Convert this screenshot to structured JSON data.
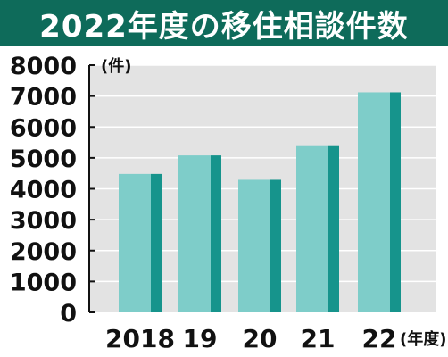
{
  "title": "2022年度の移住相談件数",
  "colors": {
    "title_bg": "#0e6b5a",
    "plot_bg": "#e3e3e3",
    "bar_face": "#7ecdc9",
    "bar_side": "#16948c",
    "axis": "#111111"
  },
  "chart_data": {
    "type": "bar",
    "categories": [
      "2018",
      "19",
      "20",
      "21",
      "22"
    ],
    "values": [
      4480,
      5080,
      4290,
      5380,
      7120
    ],
    "ylim": [
      0,
      8000
    ],
    "y_ticks": [
      "0",
      "1000",
      "2000",
      "3000",
      "4000",
      "5000",
      "6000",
      "7000",
      "8000"
    ],
    "ylabel": "(件)",
    "xlabel": "(年度)",
    "grid": true
  }
}
